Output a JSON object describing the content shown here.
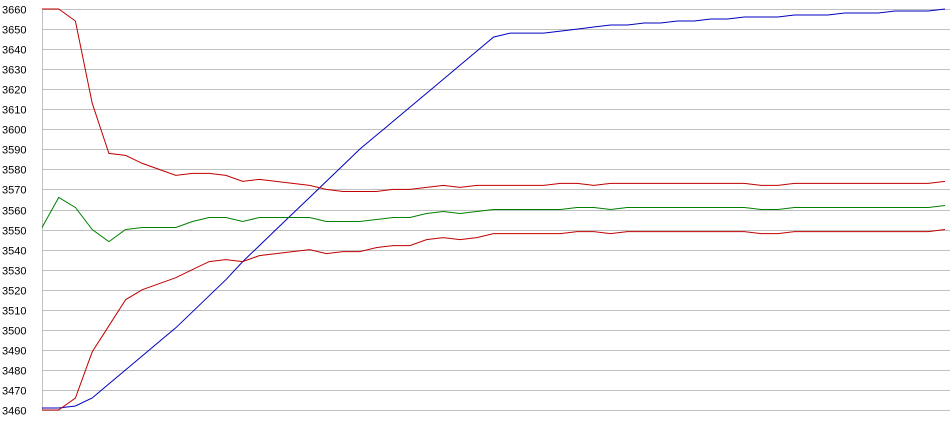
{
  "chart_data": {
    "type": "line",
    "title": "",
    "xlabel": "",
    "ylabel": "",
    "ylim": [
      3460,
      3660
    ],
    "yticks": [
      3460,
      3470,
      3480,
      3490,
      3500,
      3510,
      3520,
      3530,
      3540,
      3550,
      3560,
      3570,
      3580,
      3590,
      3600,
      3610,
      3620,
      3630,
      3640,
      3650,
      3660
    ],
    "ytick_labels": [
      "3460",
      "3470",
      "3480",
      "3490",
      "3500",
      "3510",
      "3520",
      "3530",
      "3540",
      "3550",
      "3560",
      "3570",
      "3580",
      "3590",
      "3600",
      "3610",
      "3620",
      "3630",
      "3640",
      "3650",
      "3660"
    ],
    "grid": true,
    "legend": "none",
    "x": [
      0,
      1,
      2,
      3,
      4,
      5,
      6,
      7,
      8,
      9,
      10,
      11,
      12,
      13,
      14,
      15,
      16,
      17,
      18,
      19,
      20,
      21,
      22,
      23,
      24,
      25,
      26,
      27,
      28,
      29,
      30,
      31,
      32,
      33,
      34,
      35,
      36,
      37,
      38,
      39,
      40,
      41,
      42,
      43,
      44,
      45,
      46,
      47,
      48,
      49,
      50,
      51,
      52,
      53,
      54
    ],
    "series": [
      {
        "color": "#0000c0",
        "values": [
          3461,
          3461,
          3462,
          3466,
          3473,
          3480,
          3487,
          3494,
          3501,
          3509,
          3517,
          3525,
          3534,
          3542,
          3550,
          3558,
          3566,
          3574,
          3582,
          3590,
          3597,
          3604,
          3611,
          3618,
          3625,
          3632,
          3639,
          3646,
          3648,
          3648,
          3648,
          3649,
          3650,
          3651,
          3652,
          3652,
          3653,
          3653,
          3654,
          3654,
          3655,
          3655,
          3656,
          3656,
          3656,
          3657,
          3657,
          3657,
          3658,
          3658,
          3658,
          3659,
          3659,
          3659,
          3660
        ]
      },
      {
        "color": "#c00000",
        "values": [
          3660,
          3660,
          3654,
          3613,
          3588,
          3587,
          3583,
          3580,
          3577,
          3578,
          3578,
          3577,
          3574,
          3575,
          3574,
          3573,
          3572,
          3570,
          3569,
          3569,
          3569,
          3570,
          3570,
          3571,
          3572,
          3571,
          3572,
          3572,
          3572,
          3572,
          3572,
          3573,
          3573,
          3572,
          3573,
          3573,
          3573,
          3573,
          3573,
          3573,
          3573,
          3573,
          3573,
          3572,
          3572,
          3573,
          3573,
          3573,
          3573,
          3573,
          3573,
          3573,
          3573,
          3573,
          3574
        ]
      },
      {
        "color": "#008000",
        "values": [
          3551,
          3566,
          3561,
          3550,
          3544,
          3550,
          3551,
          3551,
          3551,
          3554,
          3556,
          3556,
          3554,
          3556,
          3556,
          3556,
          3556,
          3554,
          3554,
          3554,
          3555,
          3556,
          3556,
          3558,
          3559,
          3558,
          3559,
          3560,
          3560,
          3560,
          3560,
          3560,
          3561,
          3561,
          3560,
          3561,
          3561,
          3561,
          3561,
          3561,
          3561,
          3561,
          3561,
          3560,
          3560,
          3561,
          3561,
          3561,
          3561,
          3561,
          3561,
          3561,
          3561,
          3561,
          3562
        ]
      },
      {
        "color": "#c00000",
        "values": [
          3460,
          3460,
          3466,
          3489,
          3502,
          3515,
          3520,
          3523,
          3526,
          3530,
          3534,
          3535,
          3534,
          3537,
          3538,
          3539,
          3540,
          3538,
          3539,
          3539,
          3541,
          3542,
          3542,
          3545,
          3546,
          3545,
          3546,
          3548,
          3548,
          3548,
          3548,
          3548,
          3549,
          3549,
          3548,
          3549,
          3549,
          3549,
          3549,
          3549,
          3549,
          3549,
          3549,
          3548,
          3548,
          3549,
          3549,
          3549,
          3549,
          3549,
          3549,
          3549,
          3549,
          3549,
          3550
        ]
      }
    ]
  }
}
